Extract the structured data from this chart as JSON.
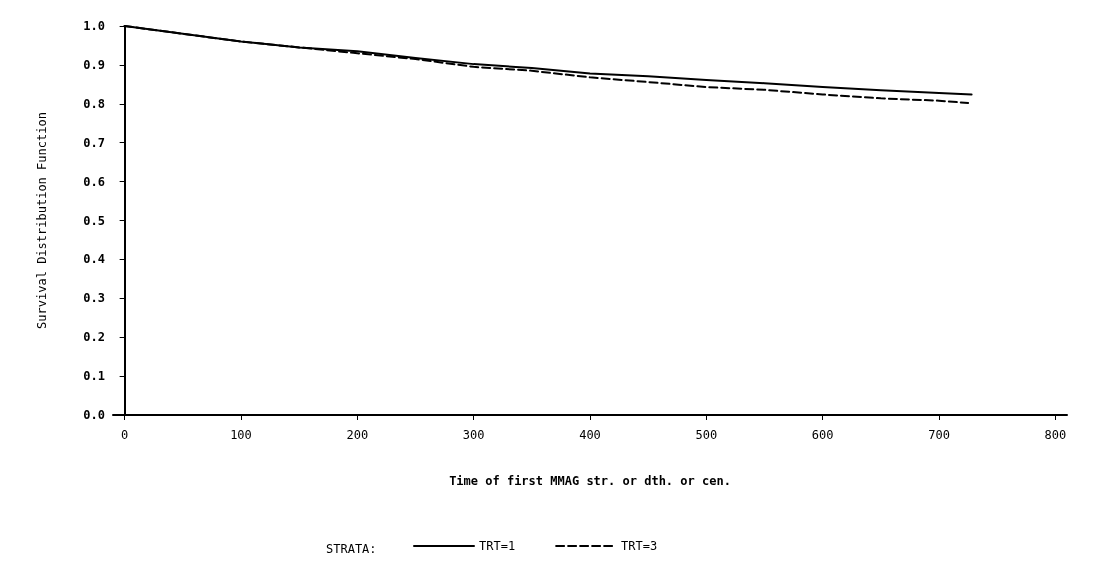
{
  "chart_data": {
    "type": "line",
    "xlabel": "Time of first MMAG str. or dth. or cen.",
    "ylabel": "Survival Distribution Function",
    "legend_title": "STRATA:",
    "legend": "bottom",
    "grid": false,
    "marker": "none",
    "xlim": [
      -10,
      810
    ],
    "xticks": [
      0,
      100,
      200,
      300,
      400,
      500,
      600,
      700,
      800
    ],
    "ylim": [
      0,
      1
    ],
    "yticks": [
      {
        "value": 0,
        "label": "0.0"
      },
      0.1,
      0.2,
      0.3,
      0.4,
      0.5,
      0.6,
      0.7,
      0.8,
      0.9,
      {
        "value": 1,
        "label": "1.0"
      }
    ],
    "series": [
      {
        "name": "TRT=1",
        "color": "#000000",
        "line_style": "solid",
        "x": [
          0,
          50,
          100,
          150,
          200,
          250,
          300,
          350,
          400,
          450,
          500,
          550,
          600,
          650,
          700,
          728
        ],
        "values": [
          1.0,
          0.98,
          0.96,
          0.945,
          0.935,
          0.918,
          0.902,
          0.892,
          0.878,
          0.871,
          0.861,
          0.853,
          0.843,
          0.835,
          0.828,
          0.824
        ]
      },
      {
        "name": "TRT=3",
        "color": "#000000",
        "line_style": "dashed",
        "x": [
          0,
          50,
          100,
          150,
          200,
          250,
          300,
          350,
          400,
          450,
          500,
          550,
          600,
          650,
          700,
          725
        ],
        "values": [
          1.0,
          0.98,
          0.96,
          0.945,
          0.93,
          0.915,
          0.895,
          0.885,
          0.868,
          0.856,
          0.843,
          0.836,
          0.824,
          0.814,
          0.808,
          0.802
        ]
      }
    ]
  }
}
